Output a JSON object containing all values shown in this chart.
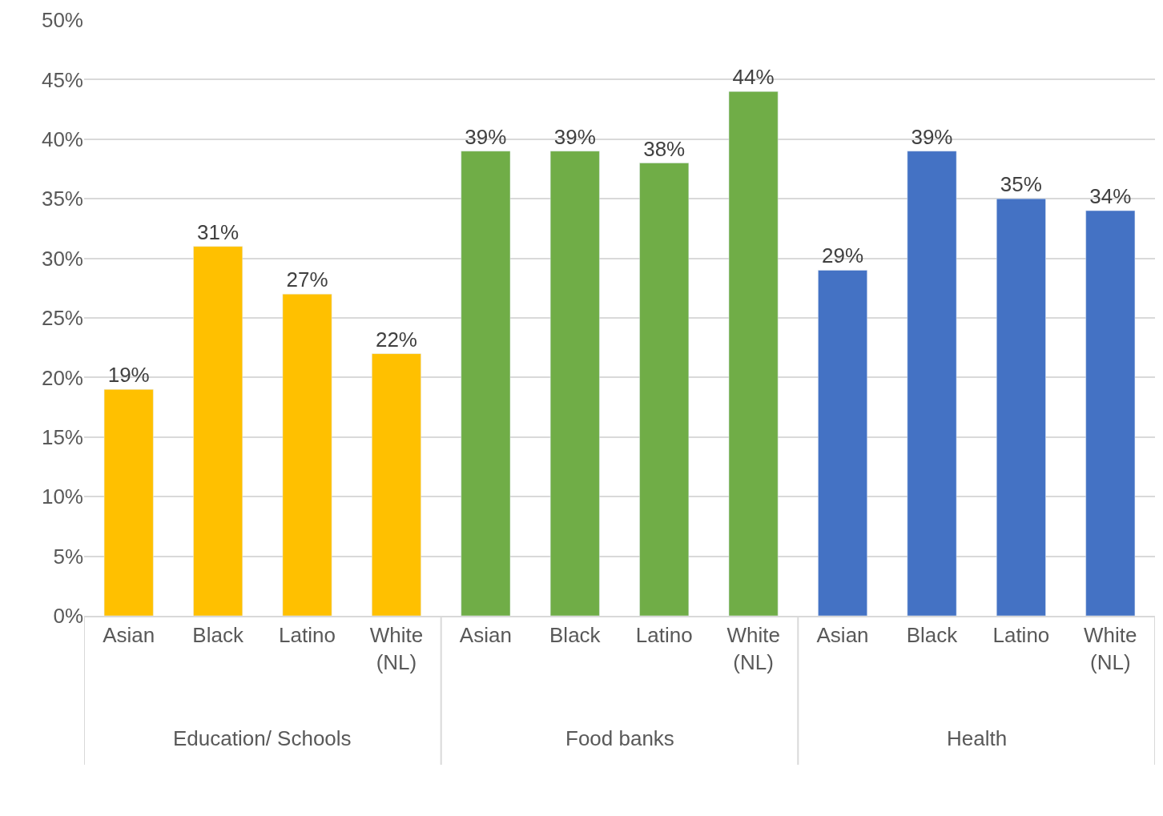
{
  "chart_data": {
    "type": "bar",
    "categories": [
      "Asian",
      "Black",
      "Latino",
      "White (NL)",
      "Asian",
      "Black",
      "Latino",
      "White (NL)",
      "Asian",
      "Black",
      "Latino",
      "White (NL)"
    ],
    "series": [
      {
        "color": "#ffc000",
        "values": [
          19,
          31,
          27,
          22,
          null,
          null,
          null,
          null,
          null,
          null,
          null,
          null
        ],
        "value_labels": [
          "19%",
          "31%",
          "27%",
          "22%",
          null,
          null,
          null,
          null,
          null,
          null,
          null,
          null
        ]
      },
      {
        "color": "#70ad47",
        "values": [
          null,
          null,
          null,
          null,
          39,
          39,
          38,
          44,
          null,
          null,
          null,
          null
        ],
        "value_labels": [
          null,
          null,
          null,
          null,
          "39%",
          "39%",
          "38%",
          "44%",
          null,
          null,
          null,
          null
        ]
      },
      {
        "color": "#4472c4",
        "values": [
          null,
          null,
          null,
          null,
          null,
          null,
          null,
          null,
          29,
          39,
          35,
          34
        ],
        "value_labels": [
          null,
          null,
          null,
          null,
          null,
          null,
          null,
          null,
          "29%",
          "39%",
          "35%",
          "34%"
        ]
      }
    ],
    "annotations": [
      "Education/ Schools",
      "Food banks",
      "Health"
    ],
    "ylim": [
      0,
      50
    ],
    "yticks": [
      {
        "value": 0,
        "label": "0%"
      },
      {
        "value": 5,
        "label": "5%"
      },
      {
        "value": 10,
        "label": "10%"
      },
      {
        "value": 15,
        "label": "15%"
      },
      {
        "value": 20,
        "label": "20%"
      },
      {
        "value": 25,
        "label": "25%"
      },
      {
        "value": 30,
        "label": "30%"
      },
      {
        "value": 35,
        "label": "35%"
      },
      {
        "value": 40,
        "label": "40%"
      },
      {
        "value": 45,
        "label": "45%"
      },
      {
        "value": 50,
        "label": "50%"
      }
    ],
    "grid": "y"
  }
}
